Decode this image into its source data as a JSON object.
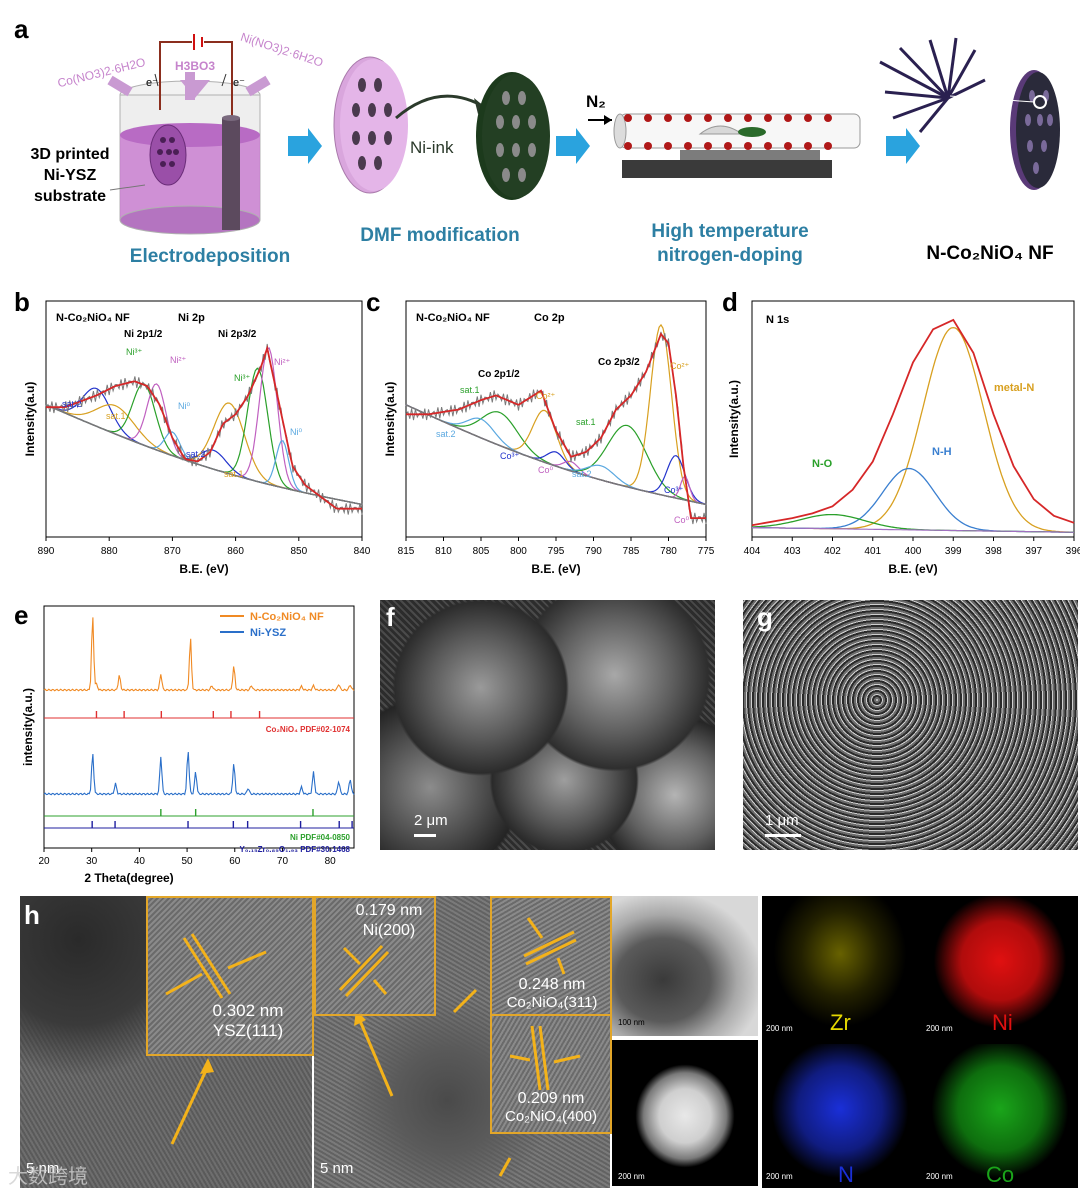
{
  "panel_labels": {
    "a": "a",
    "b": "b",
    "c": "c",
    "d": "d",
    "e": "e",
    "f": "f",
    "g": "g",
    "h": "h"
  },
  "schematic": {
    "reagent_left": "Co(NO3)2·6H2O",
    "reagent_mid": "H3BO3",
    "reagent_right": "Ni(NO3)2·6H2O",
    "electron": "e⁻",
    "substrate_label": "3D printed Ni-YSZ substrate",
    "ni_ink": "Ni-ink",
    "gas": "N₂",
    "stage_1": "Electrodeposition",
    "stage_2": "DMF modification",
    "stage_3": "High temperature nitrogen-doping",
    "product": "N-Co₂NiO₄ NF"
  },
  "xps": {
    "ylabel": "Intensity(a.u)",
    "ylabel_d": "Intensity(a.u.)",
    "xlabel": "B.E. (eV)",
    "colors": {
      "raw": "#7a7a7a",
      "fit": "#d62728",
      "bg": "#777777"
    }
  },
  "xrd": {
    "ylabel": "intensity(a.u.)",
    "xlabel": "2 Theta(degree)"
  },
  "sem": {
    "f_scale": "2 μm",
    "g_scale": "1 μm"
  },
  "tem": {
    "scale_1": "5 nm",
    "scale_2": "5 nm",
    "inset_1": {
      "d": "0.302 nm",
      "plane": "YSZ(111)"
    },
    "inset_2": {
      "d": "0.179 nm",
      "plane": "Ni(200)"
    },
    "inset_3": {
      "d": "0.248 nm",
      "plane": "Co₂NiO₄(311)"
    },
    "inset_4": {
      "d": "0.209 nm",
      "plane": "Co₂NiO₄(400)"
    },
    "stem_scale_1": "100 nm",
    "stem_scale_2": "200 nm",
    "eds_scale": "200 nm",
    "eds": [
      {
        "el": "Zr",
        "color": "#e5d800"
      },
      {
        "el": "Ni",
        "color": "#e01010"
      },
      {
        "el": "N",
        "color": "#1a2fd8"
      },
      {
        "el": "Co",
        "color": "#1aa51a"
      }
    ]
  },
  "watermark": "大数跨境",
  "chart_data": [
    {
      "panel": "b",
      "type": "line",
      "title": "N-Co₂NiO₄ NF",
      "subtitle": "Ni 2p",
      "xlabel": "B.E. (eV)",
      "ylabel": "Intensity(a.u)",
      "xlim": [
        890,
        840
      ],
      "x_ticks": [
        890,
        880,
        870,
        860,
        850,
        840
      ],
      "annotations": [
        "Ni 2p1/2",
        "Ni 2p3/2",
        "sat.2",
        "sat.1",
        "Ni³⁺",
        "Ni²⁺",
        "Ni⁰",
        "sat.2",
        "sat.1",
        "Ni³⁺",
        "Ni²⁺",
        "Ni⁰"
      ],
      "series": [
        {
          "x": [
            887,
            882,
            879,
            876,
            874,
            872,
            870,
            868,
            866,
            864,
            862,
            860,
            858,
            856,
            855,
            853,
            851,
            849,
            847,
            844
          ],
          "values": [
            0.55,
            0.6,
            0.64,
            0.66,
            0.64,
            0.56,
            0.42,
            0.33,
            0.32,
            0.36,
            0.48,
            0.52,
            0.6,
            0.72,
            0.8,
            0.55,
            0.3,
            0.22,
            0.18,
            0.12
          ]
        }
      ]
    },
    {
      "panel": "c",
      "type": "line",
      "title": "N-Co₂NiO₄ NF",
      "subtitle": "Co 2p",
      "xlabel": "B.E. (eV)",
      "ylabel": "Intensity(a.u)",
      "xlim": [
        815,
        775
      ],
      "x_ticks": [
        815,
        810,
        805,
        800,
        795,
        790,
        785,
        780,
        775
      ],
      "annotations": [
        "Co 2p1/2",
        "Co 2p3/2",
        "sat.1",
        "Co²⁺",
        "sat.2",
        "Co³⁺",
        "Co⁰",
        "sat.1",
        "Co²⁺",
        "sat.2",
        "Co³⁺",
        "Co⁰"
      ],
      "series": [
        {
          "x": [
            812,
            808,
            805,
            803,
            800,
            797,
            795,
            793,
            791,
            789,
            787,
            785,
            783,
            781,
            780,
            779,
            778,
            777
          ],
          "values": [
            0.52,
            0.54,
            0.58,
            0.6,
            0.56,
            0.62,
            0.45,
            0.34,
            0.36,
            0.42,
            0.54,
            0.6,
            0.7,
            0.86,
            0.82,
            0.6,
            0.3,
            0.08
          ]
        }
      ]
    },
    {
      "panel": "d",
      "type": "line",
      "title": "N 1s",
      "xlabel": "B.E. (eV)",
      "ylabel": "Intensity(a.u.)",
      "xlim": [
        404,
        396
      ],
      "x_ticks": [
        404,
        403,
        402,
        401,
        400,
        399,
        398,
        397,
        396
      ],
      "annotations": [
        "metal-N",
        "N-H",
        "N-O"
      ],
      "series": [
        {
          "x": [
            404,
            403,
            402.5,
            402,
            401.5,
            401,
            400.5,
            400,
            399.5,
            399,
            398.5,
            398,
            397.5,
            397,
            396.5,
            396
          ],
          "values": [
            0.05,
            0.08,
            0.1,
            0.13,
            0.2,
            0.32,
            0.52,
            0.74,
            0.88,
            0.92,
            0.78,
            0.52,
            0.3,
            0.16,
            0.09,
            0.06
          ]
        }
      ]
    },
    {
      "panel": "e",
      "type": "line",
      "xlabel": "2 Theta(degree)",
      "ylabel": "intensity(a.u.)",
      "xlim": [
        20,
        85
      ],
      "x_ticks": [
        20,
        30,
        40,
        50,
        60,
        70,
        80
      ],
      "series": [
        {
          "name": "N-Co₂NiO₄ NF",
          "color": "#f08a24",
          "x": [
            30.2,
            31.0,
            35.8,
            44.5,
            50.7,
            55.2,
            59.8,
            63.5,
            74.0,
            76.5,
            81.8,
            84.2
          ],
          "values": [
            1.0,
            0.08,
            0.2,
            0.22,
            0.7,
            0.06,
            0.32,
            0.06,
            0.05,
            0.06,
            0.08,
            0.07
          ]
        },
        {
          "name": "Ni-YSZ",
          "color": "#2a6fc9",
          "x": [
            30.2,
            35.0,
            44.5,
            50.2,
            51.8,
            59.8,
            62.8,
            74.0,
            76.5,
            81.8,
            84.2
          ],
          "values": [
            0.7,
            0.18,
            0.65,
            0.75,
            0.38,
            0.52,
            0.1,
            0.12,
            0.38,
            0.22,
            0.26
          ]
        }
      ],
      "references": [
        {
          "name": "Co₂NiO₄ PDF#02-1074",
          "color": "#e03030",
          "x": [
            31.0,
            36.8,
            44.6,
            55.5,
            59.2,
            65.2
          ]
        },
        {
          "name": "Ni PDF#04-0850",
          "color": "#2ca02c",
          "x": [
            44.5,
            51.8,
            76.4
          ]
        },
        {
          "name": "Y₀.₁₅Zr₀.₈₅O₁.₉₃ PDF#30-1468",
          "color": "#1f1f9f",
          "x": [
            30.1,
            34.9,
            50.2,
            59.7,
            62.7,
            73.8,
            81.9,
            84.6
          ]
        }
      ]
    }
  ]
}
